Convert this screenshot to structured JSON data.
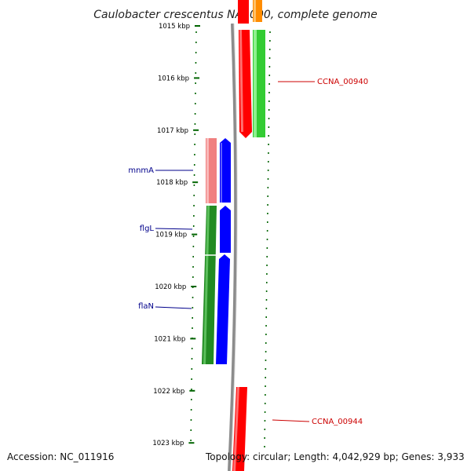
{
  "title": "Caulobacter crescentus NA1000, complete genome",
  "footer": {
    "accession": "Accession: NC_011916",
    "summary": "Topology: circular; Length: 4,042,929 bp; Genes: 3,933"
  },
  "ticks": [
    {
      "label": "1015 kbp",
      "kbp": 1015
    },
    {
      "label": "1016 kbp",
      "kbp": 1016
    },
    {
      "label": "1017 kbp",
      "kbp": 1017
    },
    {
      "label": "1018 kbp",
      "kbp": 1018
    },
    {
      "label": "1019 kbp",
      "kbp": 1019
    },
    {
      "label": "1020 kbp",
      "kbp": 1020
    },
    {
      "label": "1021 kbp",
      "kbp": 1021
    },
    {
      "label": "1022 kbp",
      "kbp": 1022
    },
    {
      "label": "1023 kbp",
      "kbp": 1023
    }
  ],
  "gene_labels": [
    {
      "name": "CCNA_00940",
      "color": "#cc0000"
    },
    {
      "name": "mnmA",
      "color": "#00008b"
    },
    {
      "name": "flgL",
      "color": "#00008b"
    },
    {
      "name": "flaN",
      "color": "#00008b"
    },
    {
      "name": "CCNA_00944",
      "color": "#cc0000"
    }
  ],
  "colors": {
    "tick_marks": "#006400",
    "backbone": "#888888",
    "red_feature": "#ff0000",
    "light_red_feature": "#f08080",
    "green_feature": "#33cc33",
    "dark_green_feature": "#228b22",
    "blue_feature": "#0000ff",
    "orange_feature": "#ff8c00"
  }
}
